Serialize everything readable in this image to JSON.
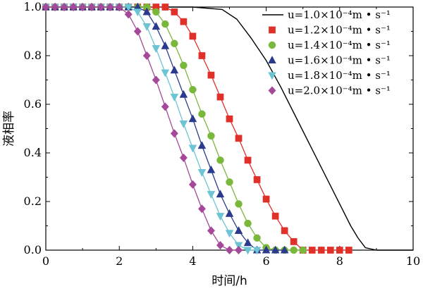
{
  "chart_data": {
    "type": "line",
    "xlabel": "时间/h",
    "ylabel": "液相率",
    "xlim": [
      0,
      10
    ],
    "ylim": [
      0,
      1.0
    ],
    "x_ticks": [
      "0",
      "2",
      "4",
      "6",
      "8",
      "10"
    ],
    "y_ticks": [
      "0.0",
      "0.2",
      "0.4",
      "0.6",
      "0.8",
      "1.0"
    ],
    "grid": false,
    "legend_position": "top-right",
    "series": [
      {
        "name": "u=1.0×10⁻⁴m • s⁻¹",
        "color": "#000000",
        "marker": "none",
        "x": [
          0,
          2,
          4,
          4.8,
          5.2,
          5.6,
          6.0,
          6.4,
          6.8,
          7.2,
          7.6,
          8.0,
          8.3,
          8.5,
          8.7,
          9.0,
          10
        ],
        "y": [
          1.0,
          1.0,
          1.0,
          0.99,
          0.95,
          0.87,
          0.78,
          0.67,
          0.55,
          0.43,
          0.31,
          0.19,
          0.1,
          0.05,
          0.01,
          0.0,
          0.0
        ]
      },
      {
        "name": "u=1.2×10⁻⁴m • s⁻¹",
        "color": "#e0302a",
        "marker": "square",
        "x": [
          0,
          0.25,
          0.5,
          0.75,
          1.0,
          1.25,
          1.5,
          1.75,
          2.0,
          2.25,
          2.5,
          2.75,
          3.0,
          3.25,
          3.5,
          3.75,
          4.0,
          4.25,
          4.5,
          4.75,
          5.0,
          5.25,
          5.5,
          5.75,
          6.0,
          6.25,
          6.5,
          6.75,
          7.0,
          7.25,
          7.5,
          7.75,
          8.0,
          8.25
        ],
        "y": [
          1.0,
          1.0,
          1.0,
          1.0,
          1.0,
          1.0,
          1.0,
          1.0,
          1.0,
          1.0,
          1.0,
          1.0,
          1.0,
          1.0,
          0.98,
          0.94,
          0.88,
          0.8,
          0.72,
          0.63,
          0.54,
          0.46,
          0.37,
          0.29,
          0.21,
          0.14,
          0.08,
          0.035,
          0.0,
          0.0,
          0.0,
          0.0,
          0.0,
          0.0
        ]
      },
      {
        "name": "u=1.4×10⁻⁴m • s⁻¹",
        "color": "#7ab83c",
        "marker": "circle",
        "x": [
          0,
          0.25,
          0.5,
          0.75,
          1.0,
          1.25,
          1.5,
          1.75,
          2.0,
          2.25,
          2.5,
          2.75,
          3.0,
          3.25,
          3.5,
          3.75,
          4.0,
          4.25,
          4.5,
          4.75,
          5.0,
          5.25,
          5.5,
          5.75,
          6.0,
          6.25,
          6.5,
          6.75,
          7.0
        ],
        "y": [
          1.0,
          1.0,
          1.0,
          1.0,
          1.0,
          1.0,
          1.0,
          1.0,
          1.0,
          1.0,
          1.0,
          1.0,
          0.98,
          0.93,
          0.85,
          0.76,
          0.66,
          0.56,
          0.47,
          0.37,
          0.28,
          0.19,
          0.11,
          0.05,
          0.01,
          0.0,
          0.0,
          0.0,
          0.0
        ]
      },
      {
        "name": "u=1.6×10⁻⁴m • s⁻¹",
        "color": "#2b3a8c",
        "marker": "triangle-up",
        "x": [
          0,
          0.25,
          0.5,
          0.75,
          1.0,
          1.25,
          1.5,
          1.75,
          2.0,
          2.25,
          2.5,
          2.75,
          3.0,
          3.25,
          3.5,
          3.75,
          4.0,
          4.25,
          4.5,
          4.75,
          5.0,
          5.25,
          5.5,
          5.75,
          6.0,
          6.25,
          6.5
        ],
        "y": [
          1.0,
          1.0,
          1.0,
          1.0,
          1.0,
          1.0,
          1.0,
          1.0,
          1.0,
          1.0,
          1.0,
          0.98,
          0.92,
          0.84,
          0.74,
          0.64,
          0.54,
          0.43,
          0.33,
          0.23,
          0.15,
          0.08,
          0.03,
          0.0,
          0.0,
          0.0,
          0.0
        ]
      },
      {
        "name": "u=1.8×10⁻⁴m • s⁻¹",
        "color": "#6cc4d4",
        "marker": "triangle-down",
        "x": [
          0,
          0.25,
          0.5,
          0.75,
          1.0,
          1.25,
          1.5,
          1.75,
          2.0,
          2.25,
          2.5,
          2.75,
          3.0,
          3.25,
          3.5,
          3.75,
          4.0,
          4.25,
          4.5,
          4.75,
          5.0,
          5.25,
          5.5,
          5.75
        ],
        "y": [
          1.0,
          1.0,
          1.0,
          1.0,
          1.0,
          1.0,
          1.0,
          1.0,
          1.0,
          1.0,
          0.98,
          0.92,
          0.83,
          0.73,
          0.63,
          0.52,
          0.42,
          0.32,
          0.23,
          0.14,
          0.07,
          0.02,
          0.0,
          0.0
        ]
      },
      {
        "name": "u=2.0×10⁻⁴m • s⁻¹",
        "color": "#a5489a",
        "marker": "diamond",
        "x": [
          0,
          0.25,
          0.5,
          0.75,
          1.0,
          1.25,
          1.5,
          1.75,
          2.0,
          2.25,
          2.5,
          2.75,
          3.0,
          3.25,
          3.5,
          3.75,
          4.0,
          4.25,
          4.5,
          4.75,
          5.0,
          5.25
        ],
        "y": [
          1.0,
          1.0,
          1.0,
          1.0,
          1.0,
          1.0,
          1.0,
          1.0,
          1.0,
          0.97,
          0.9,
          0.8,
          0.7,
          0.59,
          0.48,
          0.38,
          0.27,
          0.17,
          0.08,
          0.02,
          0.0,
          0.0
        ]
      }
    ]
  }
}
